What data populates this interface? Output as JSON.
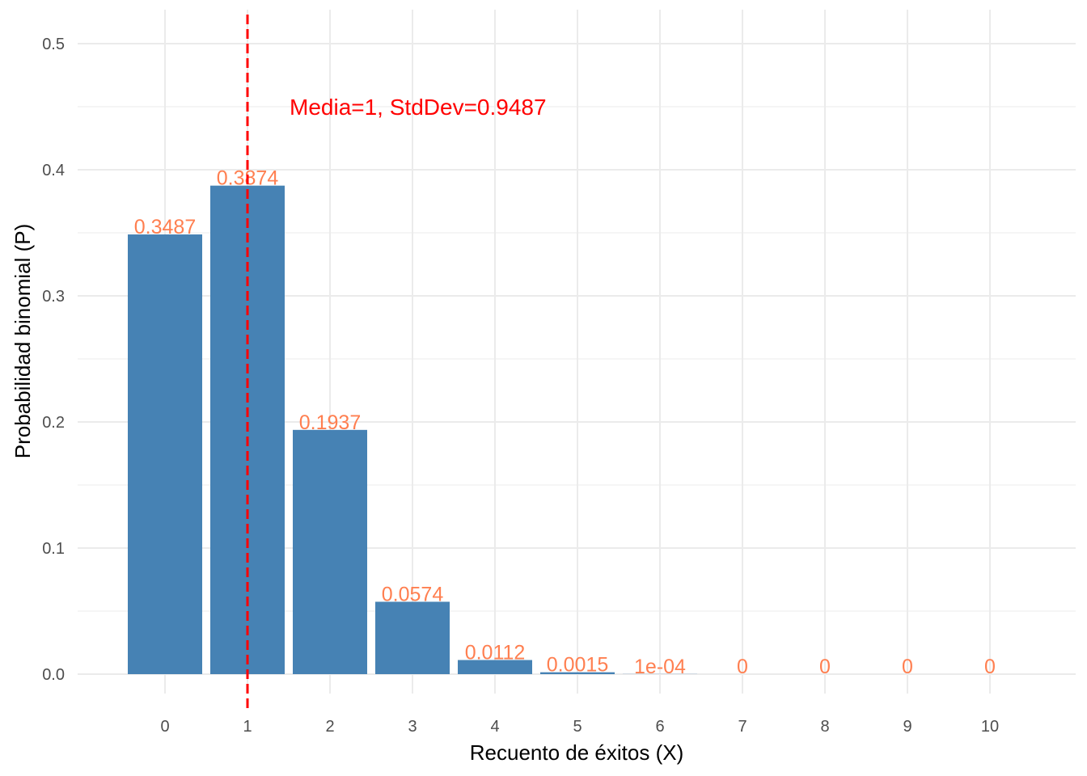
{
  "chart_data": {
    "type": "bar",
    "title": "",
    "xlabel": "Recuento de éxitos (X)",
    "ylabel": "Probabilidad binomial (P)",
    "categories": [
      "0",
      "1",
      "2",
      "3",
      "4",
      "5",
      "6",
      "7",
      "8",
      "9",
      "10"
    ],
    "values": [
      0.3487,
      0.3874,
      0.1937,
      0.0574,
      0.0112,
      0.0015,
      0.0001,
      0,
      0,
      0,
      0
    ],
    "data_labels": [
      "0.3487",
      "0.3874",
      "0.1937",
      "0.0574",
      "0.0112",
      "0.0015",
      "1e-04",
      "0",
      "0",
      "0",
      "0"
    ],
    "ylim": [
      0,
      0.5
    ],
    "y_ticks": [
      0.0,
      0.1,
      0.2,
      0.3,
      0.4,
      0.5
    ],
    "y_tick_labels": [
      "0.0",
      "0.1",
      "0.2",
      "0.3",
      "0.4",
      "0.5"
    ],
    "mean_line": {
      "x": 1,
      "style": "dashed"
    },
    "annotation": {
      "text": "Media=1, StdDev=0.9487",
      "x": 1.5,
      "y": 0.45
    },
    "grid": true,
    "legend": "none"
  },
  "colors": {
    "bar": "#4682B4",
    "data_label": "#FF7F50",
    "mean_line": "#FF0000",
    "annotation": "#FF0000",
    "grid": "#EBEBEB"
  }
}
